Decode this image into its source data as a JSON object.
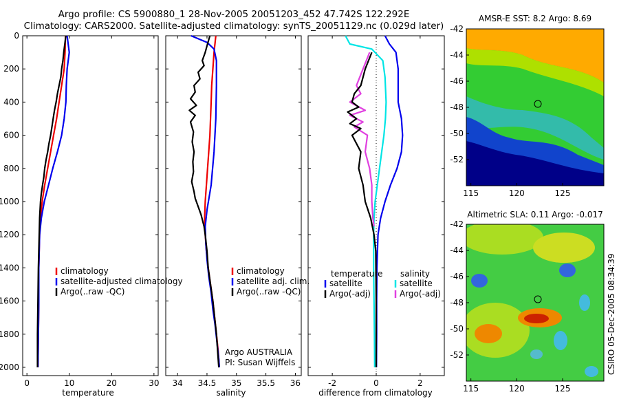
{
  "header": {
    "title_line1": "Argo profile: CS 5900880_1 28-Nov-2005 20051203_452 47.742S 122.292E",
    "title_line2": "Climatology: CARS2000. Satellite-adjusted climatology: synTS_20051129.nc (0.029d later)"
  },
  "credit": "CSIRO 05-Dec-2005 08:34:39",
  "colors": {
    "red": "#ee0000",
    "blue": "#0000ee",
    "black": "#000000",
    "cyan": "#00e5e5",
    "magenta": "#e040e0"
  },
  "chart_data": [
    {
      "type": "line",
      "id": "temperature",
      "xlabel": "temperature",
      "ylabel": "",
      "xlim": [
        -1,
        31
      ],
      "ylim": [
        0,
        2050
      ],
      "xticks": [
        0,
        10,
        20,
        30
      ],
      "yticks": [
        0,
        200,
        400,
        600,
        800,
        1000,
        1200,
        1400,
        1600,
        1800,
        2000
      ],
      "legend": {
        "placement": "bottom-right",
        "entries": [
          {
            "label": "climatology",
            "color": "red"
          },
          {
            "label": "satellite-adjusted climatology",
            "color": "blue"
          },
          {
            "label": "Argo(..raw -QC)",
            "color": "black"
          }
        ]
      },
      "series": [
        {
          "color": "red",
          "points": [
            [
              9.1,
              0
            ],
            [
              9.0,
              100
            ],
            [
              8.8,
              200
            ],
            [
              8.2,
              300
            ],
            [
              7.6,
              400
            ],
            [
              7.0,
              500
            ],
            [
              6.3,
              600
            ],
            [
              5.6,
              700
            ],
            [
              4.9,
              800
            ],
            [
              4.2,
              900
            ],
            [
              3.6,
              1000
            ],
            [
              3.2,
              1100
            ],
            [
              3.0,
              1200
            ],
            [
              2.9,
              1300
            ],
            [
              2.8,
              1400
            ],
            [
              2.8,
              1600
            ],
            [
              2.7,
              1800
            ],
            [
              2.6,
              2000
            ]
          ]
        },
        {
          "color": "blue",
          "points": [
            [
              9.5,
              0
            ],
            [
              10.0,
              100
            ],
            [
              9.5,
              200
            ],
            [
              9.3,
              300
            ],
            [
              9.2,
              400
            ],
            [
              8.8,
              500
            ],
            [
              8.2,
              600
            ],
            [
              7.2,
              700
            ],
            [
              6.1,
              800
            ],
            [
              5.1,
              900
            ],
            [
              4.1,
              1000
            ],
            [
              3.4,
              1100
            ],
            [
              3.0,
              1200
            ],
            [
              2.9,
              1300
            ],
            [
              2.8,
              1400
            ],
            [
              2.8,
              1600
            ],
            [
              2.7,
              1800
            ],
            [
              2.6,
              2000
            ]
          ]
        },
        {
          "color": "black",
          "points": [
            [
              9.2,
              0
            ],
            [
              8.9,
              60
            ],
            [
              8.7,
              100
            ],
            [
              8.5,
              150
            ],
            [
              8.2,
              200
            ],
            [
              8.0,
              250
            ],
            [
              7.6,
              300
            ],
            [
              7.2,
              350
            ],
            [
              6.9,
              400
            ],
            [
              6.5,
              450
            ],
            [
              6.2,
              500
            ],
            [
              5.9,
              550
            ],
            [
              5.6,
              600
            ],
            [
              5.2,
              650
            ],
            [
              4.9,
              700
            ],
            [
              4.5,
              750
            ],
            [
              4.2,
              800
            ],
            [
              4.0,
              850
            ],
            [
              3.7,
              900
            ],
            [
              3.4,
              950
            ],
            [
              3.2,
              1000
            ],
            [
              3.0,
              1100
            ],
            [
              2.9,
              1200
            ],
            [
              2.8,
              1300
            ],
            [
              2.7,
              1400
            ],
            [
              2.6,
              1600
            ],
            [
              2.5,
              1800
            ],
            [
              2.5,
              2000
            ]
          ]
        }
      ]
    },
    {
      "type": "line",
      "id": "salinity",
      "xlabel": "salinity",
      "ylabel": "",
      "xlim": [
        33.8,
        36.1
      ],
      "ylim": [
        0,
        2050
      ],
      "xticks": [
        34,
        34.5,
        35,
        35.5,
        36
      ],
      "legend": {
        "placement": "bottom-right",
        "entries": [
          {
            "label": "climatology",
            "color": "red"
          },
          {
            "label": "satellite adj. clim.",
            "color": "blue"
          },
          {
            "label": "Argo(..raw -QC)",
            "color": "black"
          }
        ],
        "notes": [
          "Argo AUSTRALIA",
          "PI: Susan Wijffels"
        ]
      },
      "series": [
        {
          "color": "red",
          "points": [
            [
              34.65,
              0
            ],
            [
              34.62,
              100
            ],
            [
              34.6,
              200
            ],
            [
              34.58,
              300
            ],
            [
              34.57,
              400
            ],
            [
              34.56,
              500
            ],
            [
              34.55,
              600
            ],
            [
              34.53,
              700
            ],
            [
              34.51,
              800
            ],
            [
              34.49,
              900
            ],
            [
              34.47,
              1000
            ],
            [
              34.46,
              1100
            ],
            [
              34.47,
              1200
            ],
            [
              34.49,
              1300
            ],
            [
              34.52,
              1400
            ],
            [
              34.56,
              1500
            ],
            [
              34.6,
              1600
            ],
            [
              34.63,
              1700
            ],
            [
              34.66,
              1800
            ],
            [
              34.69,
              1900
            ],
            [
              34.71,
              2000
            ]
          ]
        },
        {
          "color": "blue",
          "points": [
            [
              34.23,
              0
            ],
            [
              34.5,
              40
            ],
            [
              34.62,
              80
            ],
            [
              34.66,
              150
            ],
            [
              34.66,
              300
            ],
            [
              34.65,
              500
            ],
            [
              34.62,
              700
            ],
            [
              34.57,
              900
            ],
            [
              34.5,
              1050
            ],
            [
              34.47,
              1150
            ],
            [
              34.48,
              1250
            ],
            [
              34.5,
              1350
            ],
            [
              34.53,
              1450
            ],
            [
              34.57,
              1550
            ],
            [
              34.6,
              1650
            ],
            [
              34.64,
              1750
            ],
            [
              34.67,
              1850
            ],
            [
              34.7,
              1950
            ],
            [
              34.71,
              2000
            ]
          ]
        },
        {
          "color": "black",
          "points": [
            [
              34.55,
              0
            ],
            [
              34.5,
              60
            ],
            [
              34.47,
              100
            ],
            [
              34.42,
              150
            ],
            [
              34.45,
              180
            ],
            [
              34.35,
              220
            ],
            [
              34.38,
              260
            ],
            [
              34.28,
              300
            ],
            [
              34.3,
              340
            ],
            [
              34.22,
              380
            ],
            [
              34.32,
              420
            ],
            [
              34.2,
              450
            ],
            [
              34.3,
              480
            ],
            [
              34.22,
              520
            ],
            [
              34.27,
              580
            ],
            [
              34.25,
              640
            ],
            [
              34.28,
              700
            ],
            [
              34.26,
              760
            ],
            [
              34.27,
              820
            ],
            [
              34.24,
              880
            ],
            [
              34.28,
              940
            ],
            [
              34.3,
              980
            ],
            [
              34.35,
              1030
            ],
            [
              34.4,
              1080
            ],
            [
              34.45,
              1150
            ],
            [
              34.47,
              1200
            ],
            [
              34.5,
              1300
            ],
            [
              34.52,
              1400
            ],
            [
              34.56,
              1500
            ],
            [
              34.6,
              1600
            ],
            [
              34.63,
              1700
            ],
            [
              34.66,
              1800
            ],
            [
              34.68,
              1900
            ],
            [
              34.7,
              2000
            ]
          ]
        }
      ]
    },
    {
      "type": "line",
      "id": "difference",
      "xlabel": "difference from climatology",
      "ylabel": "",
      "xlim": [
        -3.1,
        3.1
      ],
      "ylim": [
        0,
        2050
      ],
      "xticks": [
        -2,
        0,
        2
      ],
      "legend": {
        "placement": "bottom",
        "left_title": "temperature",
        "right_title": "salinity",
        "left_entries": [
          {
            "label": "satellite",
            "color": "blue"
          },
          {
            "label": "Argo(-adj)",
            "color": "black"
          }
        ],
        "right_entries": [
          {
            "label": "satellite",
            "color": "cyan"
          },
          {
            "label": "Argo(-adj)",
            "color": "magenta"
          }
        ]
      },
      "series": [
        {
          "color": "blue",
          "points": [
            [
              0.4,
              0
            ],
            [
              0.6,
              50
            ],
            [
              0.9,
              100
            ],
            [
              1.0,
              200
            ],
            [
              1.0,
              400
            ],
            [
              1.15,
              500
            ],
            [
              1.2,
              600
            ],
            [
              1.15,
              700
            ],
            [
              0.95,
              800
            ],
            [
              0.65,
              900
            ],
            [
              0.4,
              1000
            ],
            [
              0.2,
              1100
            ],
            [
              0.08,
              1200
            ],
            [
              0.03,
              1400
            ],
            [
              0.02,
              1600
            ],
            [
              0.02,
              1800
            ],
            [
              0.01,
              2000
            ]
          ]
        },
        {
          "color": "cyan",
          "points": [
            [
              -1.4,
              0
            ],
            [
              -1.2,
              50
            ],
            [
              -0.2,
              80
            ],
            [
              0.3,
              150
            ],
            [
              0.4,
              250
            ],
            [
              0.45,
              400
            ],
            [
              0.42,
              500
            ],
            [
              0.35,
              600
            ],
            [
              0.25,
              700
            ],
            [
              0.15,
              800
            ],
            [
              0.05,
              900
            ],
            [
              -0.05,
              1000
            ],
            [
              -0.1,
              1100
            ],
            [
              -0.12,
              1200
            ],
            [
              -0.12,
              1400
            ],
            [
              -0.1,
              1600
            ],
            [
              -0.08,
              1800
            ],
            [
              -0.07,
              2000
            ]
          ]
        },
        {
          "color": "magenta",
          "points": [
            [
              -0.3,
              100
            ],
            [
              -0.6,
              200
            ],
            [
              -0.9,
              300
            ],
            [
              -0.7,
              350
            ],
            [
              -1.2,
              400
            ],
            [
              -0.5,
              450
            ],
            [
              -1.2,
              480
            ],
            [
              -0.6,
              520
            ],
            [
              -1.0,
              550
            ],
            [
              -0.4,
              600
            ],
            [
              -0.5,
              700
            ],
            [
              -0.3,
              800
            ],
            [
              -0.2,
              900
            ],
            [
              -0.2,
              1000
            ],
            [
              -0.15,
              1100
            ],
            [
              -0.1,
              1150
            ]
          ]
        },
        {
          "color": "black",
          "points": [
            [
              -0.2,
              100
            ],
            [
              -0.5,
              200
            ],
            [
              -0.7,
              300
            ],
            [
              -1.0,
              350
            ],
            [
              -1.1,
              400
            ],
            [
              -0.8,
              430
            ],
            [
              -1.3,
              460
            ],
            [
              -0.9,
              500
            ],
            [
              -1.2,
              530
            ],
            [
              -0.7,
              560
            ],
            [
              -1.1,
              600
            ],
            [
              -0.7,
              700
            ],
            [
              -0.8,
              800
            ],
            [
              -0.6,
              900
            ],
            [
              -0.5,
              1000
            ],
            [
              -0.25,
              1100
            ],
            [
              -0.1,
              1200
            ],
            [
              -0.02,
              1300
            ],
            [
              0.0,
              1600
            ],
            [
              0.0,
              2000
            ]
          ]
        }
      ]
    }
  ],
  "maps": [
    {
      "id": "amsr-sst",
      "title": "AMSR-E SST: 8.2 Argo: 8.69",
      "type": "heatmap",
      "xlim": [
        114.5,
        129.5
      ],
      "ylim": [
        -54,
        -42
      ],
      "xticks": [
        115,
        120,
        125
      ],
      "yticks": [
        -42,
        -44,
        -46,
        -48,
        -50,
        -52
      ],
      "marker": {
        "lon": 122.3,
        "lat": -47.74
      }
    },
    {
      "id": "altimetric-sla",
      "title": "Altimetric SLA: 0.11 Argo: -0.017",
      "type": "heatmap",
      "xlim": [
        114.5,
        129.5
      ],
      "ylim": [
        -54,
        -42
      ],
      "xticks": [
        115,
        120,
        125
      ],
      "yticks": [
        -42,
        -44,
        -46,
        -48,
        -50,
        -52
      ],
      "marker": {
        "lon": 122.3,
        "lat": -47.74
      }
    }
  ]
}
